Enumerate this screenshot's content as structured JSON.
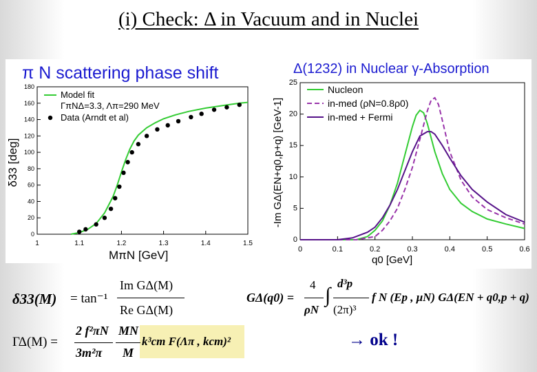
{
  "slide": {
    "title": "(i) Check: Δ in Vacuum and in Nuclei",
    "ok_label": "→ ok !"
  },
  "chart_data": [
    {
      "type": "line",
      "title": "π N scattering phase shift",
      "xlabel": "MπN [GeV]",
      "ylabel": "δ33 [deg]",
      "xlim": [
        1,
        1.5
      ],
      "ylim": [
        0,
        180
      ],
      "xticks": [
        "1",
        "1.1",
        "1.2",
        "1.3",
        "1.4",
        "1.5"
      ],
      "yticks": [
        "0",
        "20",
        "40",
        "60",
        "80",
        "100",
        "120",
        "140",
        "160",
        "180"
      ],
      "legend": [
        "Model fit",
        "ΓπNΔ=3.3, Λπ=290 MeV",
        "Data (Arndt et al)"
      ],
      "series": [
        {
          "name": "Model fit",
          "kind": "line",
          "color": "#33cc33",
          "x": [
            1.08,
            1.1,
            1.12,
            1.14,
            1.16,
            1.18,
            1.19,
            1.2,
            1.21,
            1.22,
            1.23,
            1.24,
            1.26,
            1.28,
            1.3,
            1.33,
            1.36,
            1.4,
            1.44,
            1.48,
            1.5
          ],
          "y": [
            0,
            2,
            6,
            13,
            26,
            46,
            60,
            76,
            91,
            104,
            114,
            121,
            130,
            136,
            141,
            146,
            150,
            154,
            157,
            160,
            161
          ]
        },
        {
          "name": "Data (Arndt et al)",
          "kind": "scatter",
          "color": "#000000",
          "x": [
            1.1,
            1.115,
            1.14,
            1.16,
            1.175,
            1.185,
            1.195,
            1.205,
            1.215,
            1.225,
            1.24,
            1.26,
            1.285,
            1.31,
            1.335,
            1.365,
            1.39,
            1.42,
            1.45,
            1.48
          ],
          "y": [
            3,
            6,
            12,
            20,
            31,
            44,
            58,
            75,
            88,
            100,
            110,
            120,
            128,
            133,
            138,
            143,
            147,
            152,
            155,
            158
          ]
        }
      ]
    },
    {
      "type": "line",
      "title": "Δ(1232) in Nuclear γ-Absorption",
      "xlabel": "q0 [GeV]",
      "ylabel": "-Im GΔ(EN+q0,p+q) [GeV-1]",
      "xlim": [
        0,
        0.6
      ],
      "ylim": [
        0,
        25
      ],
      "xticks": [
        "0",
        "0.1",
        "0.2",
        "0.3",
        "0.4",
        "0.5",
        "0.6"
      ],
      "yticks": [
        "0",
        "5",
        "10",
        "15",
        "20",
        "25"
      ],
      "series": [
        {
          "name": "Nucleon",
          "color": "#33cc33",
          "dash": "solid",
          "x": [
            0,
            0.1,
            0.15,
            0.18,
            0.2,
            0.22,
            0.24,
            0.26,
            0.28,
            0.3,
            0.31,
            0.32,
            0.33,
            0.34,
            0.36,
            0.38,
            0.4,
            0.43,
            0.46,
            0.5,
            0.55,
            0.6
          ],
          "y": [
            0,
            0,
            0,
            0.5,
            1.5,
            3,
            5.5,
            9,
            13.5,
            18,
            19.8,
            20.6,
            20.2,
            18.5,
            14,
            10.5,
            8,
            5.8,
            4.5,
            3.3,
            2.5,
            1.8
          ]
        },
        {
          "name": "in-med (ρN=0.8ρ0)",
          "color": "#9933aa",
          "dash": "dashed",
          "x": [
            0,
            0.1,
            0.15,
            0.2,
            0.22,
            0.24,
            0.26,
            0.28,
            0.3,
            0.32,
            0.34,
            0.35,
            0.36,
            0.37,
            0.38,
            0.4,
            0.43,
            0.46,
            0.5,
            0.55,
            0.6
          ],
          "y": [
            0,
            0,
            0,
            0.5,
            1.5,
            3,
            5,
            8,
            11.5,
            16,
            20.5,
            22.2,
            22.6,
            21.5,
            19,
            14,
            9.5,
            6.8,
            4.8,
            3.5,
            2.5
          ]
        },
        {
          "name": "in-med + Fermi",
          "color": "#551188",
          "dash": "solid",
          "x": [
            0,
            0.1,
            0.14,
            0.18,
            0.2,
            0.22,
            0.24,
            0.26,
            0.28,
            0.3,
            0.32,
            0.34,
            0.35,
            0.36,
            0.38,
            0.4,
            0.43,
            0.46,
            0.5,
            0.55,
            0.6
          ],
          "y": [
            0,
            0,
            0.3,
            1.2,
            2,
            3.5,
            5.5,
            8,
            11,
            14,
            16.5,
            17.2,
            17.2,
            16.8,
            15,
            13,
            10.2,
            8,
            6,
            4,
            2.8
          ]
        }
      ]
    }
  ],
  "equations": {
    "delta33_lhs": "δ33(M)",
    "delta33_mid": "= tan⁻¹",
    "delta33_num": "Im GΔ(M)",
    "delta33_den": "Re GΔ(M)",
    "gamma_lhs": "ΓΔ(M) =",
    "gamma_f1_num": "2 f²πN",
    "gamma_f1_den": "3m²π",
    "gamma_f2_num": "MN",
    "gamma_f2_den": "M",
    "gamma_tail": "k³cm F(Λπ , kcm)²",
    "gbar_lhs": "GΔ(q0) =",
    "gbar_f1_num": "4",
    "gbar_f1_den": "ρN",
    "gbar_int": "∫",
    "gbar_f2_num": "d³p",
    "gbar_f2_den": "(2π)³",
    "gbar_tail": "f N (Ep , μN) GΔ(EN + q0,p + q)"
  }
}
